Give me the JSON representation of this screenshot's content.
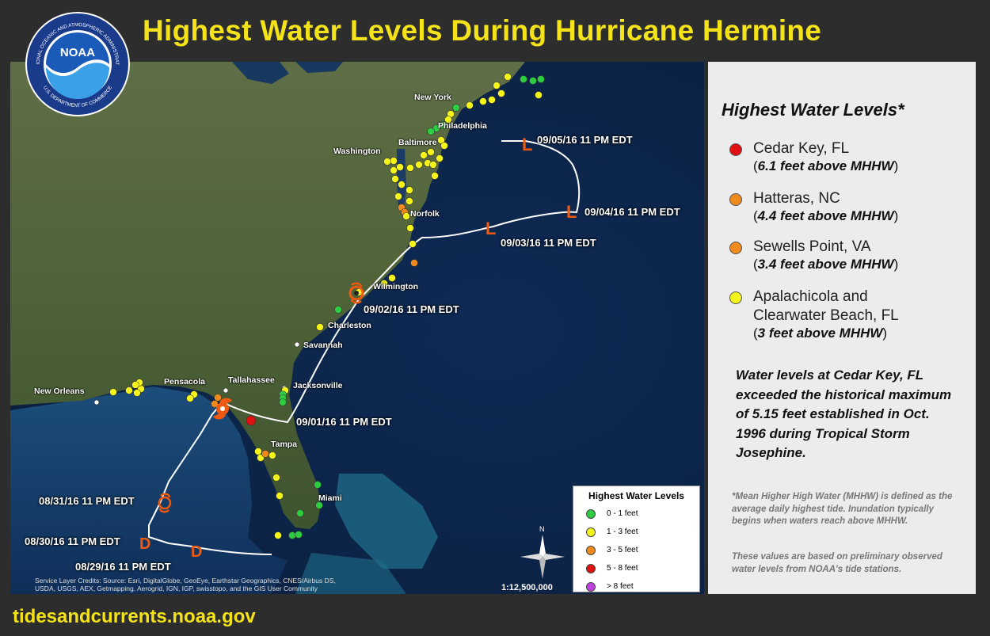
{
  "title": "Highest Water Levels During Hurricane Hermine",
  "footer_url": "tidesandcurrents.noaa.gov",
  "logo": {
    "text": "NOAA",
    "ring_text_top": "NATIONAL OCEANIC AND ATMOSPHERIC ADMINISTRATION",
    "ring_text_bottom": "U.S. DEPARTMENT OF COMMERCE"
  },
  "colors": {
    "title": "#f5e31a",
    "range_0_1": "#2ecc40",
    "range_1_3": "#f5f51a",
    "range_3_5": "#f08a1c",
    "range_5_8": "#e01010",
    "range_gt8": "#c040e0",
    "track": "#ffffff",
    "storm_symbol": "#f05a10"
  },
  "map": {
    "city_labels": [
      {
        "name": "New York"
      },
      {
        "name": "Philadelphia"
      },
      {
        "name": "Baltimore"
      },
      {
        "name": "Washington"
      },
      {
        "name": "Norfolk"
      },
      {
        "name": "Wilmington"
      },
      {
        "name": "Charleston"
      },
      {
        "name": "Savannah"
      },
      {
        "name": "Jacksonville"
      },
      {
        "name": "Tallahassee"
      },
      {
        "name": "Pensacola"
      },
      {
        "name": "New Orleans"
      },
      {
        "name": "Tampa"
      },
      {
        "name": "Miami"
      }
    ],
    "track_points": [
      {
        "label": "09/05/16 11 PM EDT",
        "symbol": "L"
      },
      {
        "label": "09/04/16 11 PM EDT",
        "symbol": "L"
      },
      {
        "label": "09/03/16 11 PM EDT",
        "symbol": "L"
      },
      {
        "label": "09/02/16 11 PM EDT",
        "symbol": "tropical-storm"
      },
      {
        "label": "09/01/16 11 PM EDT",
        "symbol": "hurricane"
      },
      {
        "label": "08/31/16 11 PM EDT",
        "symbol": "tropical-storm"
      },
      {
        "label": "08/30/16 11 PM EDT",
        "symbol": "D"
      },
      {
        "label": "08/29/16 11 PM EDT",
        "symbol": "D"
      }
    ],
    "credits": "Service Layer Credits: Source: Esri, DigitalGlobe, GeoEye, Earthstar Geographics, CNES/Airbus DS, USDA, USGS, AEX, Getmapping, Aerogrid, IGN, IGP, swisstopo, and the GIS User Community",
    "scale": "1:12,500,000",
    "north_label": "N"
  },
  "map_legend": {
    "title": "Highest Water Levels",
    "items": [
      {
        "label": "0 - 1 feet",
        "color": "#2ecc40"
      },
      {
        "label": "1 - 3 feet",
        "color": "#f5f51a"
      },
      {
        "label": "3 - 5 feet",
        "color": "#f08a1c"
      },
      {
        "label": "5 - 8 feet",
        "color": "#e01010"
      },
      {
        "label": "> 8 feet",
        "color": "#c040e0"
      }
    ]
  },
  "side_panel": {
    "heading": "Highest Water Levels*",
    "entries": [
      {
        "name": "Cedar Key, FL",
        "detail_open": "(",
        "detail_value": "6.1 feet above MHHW",
        "detail_close": ")",
        "color": "#e01010"
      },
      {
        "name": "Hatteras, NC",
        "detail_open": "(",
        "detail_value": "4.4 feet above MHHW",
        "detail_close": ")",
        "color": "#f08a1c"
      },
      {
        "name": "Sewells Point, VA",
        "detail_open": "(",
        "detail_value": "3.4 feet above MHHW",
        "detail_close": ")",
        "color": "#f08a1c"
      },
      {
        "name_line1": "Apalachicola and",
        "name_line2": "Clearwater Beach, FL",
        "detail_open": "(",
        "detail_value": "3 feet above MHHW",
        "detail_close": ")",
        "color": "#f5f51a"
      }
    ],
    "note": "Water levels at Cedar Key, FL exceeded the historical maximum of 5.15 feet established in Oct. 1996 during Tropical Storm Josephine.",
    "footnote1": "*Mean Higher High Water (MHHW) is defined as the average daily highest tide. Inundation typically begins when waters reach above MHHW.",
    "footnote2": "These values are based on preliminary observed water levels from NOAA's tide stations."
  }
}
